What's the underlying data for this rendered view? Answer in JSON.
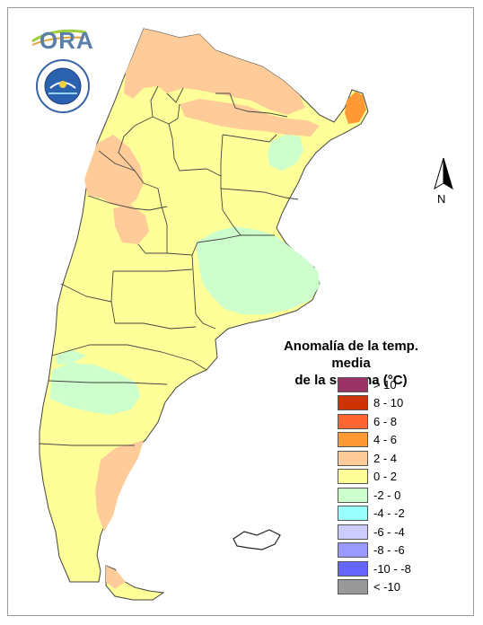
{
  "logo": {
    "text": "ORA",
    "name": "ora-logo"
  },
  "seal": {
    "name": "servicio-meteorologico-nacional-seal"
  },
  "north": {
    "label": "N"
  },
  "legend": {
    "title_line1": "Anomalía de la temp. media",
    "title_line2": "de la semana (°C)",
    "classes": [
      {
        "label": "> 10",
        "color": "#993366"
      },
      {
        "label": "8 - 10",
        "color": "#cc3300"
      },
      {
        "label": "6 - 8",
        "color": "#ff6633"
      },
      {
        "label": "4 - 6",
        "color": "#ff9933"
      },
      {
        "label": "2 - 4",
        "color": "#ffcc99"
      },
      {
        "label": "0 - 2",
        "color": "#ffff99"
      },
      {
        "label": "-2 - 0",
        "color": "#ccffcc"
      },
      {
        "label": "-4 - -2",
        "color": "#99ffff"
      },
      {
        "label": "-6 - -4",
        "color": "#ccccff"
      },
      {
        "label": "-8 - -6",
        "color": "#9999ff"
      },
      {
        "label": "-10 - -8",
        "color": "#6666ff"
      },
      {
        "label": "< -10",
        "color": "#999999"
      }
    ]
  },
  "map_colors": {
    "positive_0_2": "#ffff99",
    "positive_2_4": "#ffcc99",
    "positive_4_6": "#ff9933",
    "negative_0_2": "#ccffcc",
    "negative_2_4": "#99ffff"
  }
}
